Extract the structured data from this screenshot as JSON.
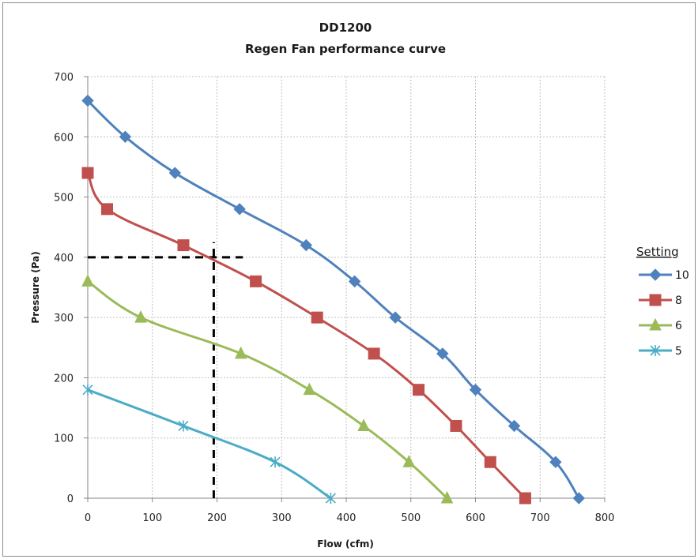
{
  "chart_data": {
    "type": "line",
    "title": [
      "DD1200",
      "Regen Fan performance curve"
    ],
    "xlabel": "Flow (cfm)",
    "ylabel": "Pressure (Pa)",
    "xlim": [
      0,
      800
    ],
    "ylim": [
      0,
      700
    ],
    "xticks": [
      0,
      100,
      200,
      300,
      400,
      500,
      600,
      700,
      800
    ],
    "yticks": [
      0,
      100,
      200,
      300,
      400,
      500,
      600,
      700
    ],
    "grid": true,
    "legend": {
      "title": "Setting",
      "placement": "right"
    },
    "series": [
      {
        "name": "10",
        "color": "#4f81bd",
        "marker": "diamond",
        "points": [
          [
            0,
            660
          ],
          [
            58,
            600
          ],
          [
            135,
            540
          ],
          [
            235,
            480
          ],
          [
            338,
            420
          ],
          [
            413,
            360
          ],
          [
            476,
            300
          ],
          [
            549,
            240
          ],
          [
            600,
            180
          ],
          [
            660,
            120
          ],
          [
            724,
            60
          ],
          [
            760,
            0
          ]
        ]
      },
      {
        "name": "8",
        "color": "#c0504d",
        "marker": "square",
        "points": [
          [
            0,
            540
          ],
          [
            30,
            480
          ],
          [
            148,
            420
          ],
          [
            260,
            360
          ],
          [
            355,
            300
          ],
          [
            443,
            240
          ],
          [
            512,
            180
          ],
          [
            570,
            120
          ],
          [
            623,
            60
          ],
          [
            677,
            0
          ]
        ]
      },
      {
        "name": "6",
        "color": "#9bbb59",
        "marker": "triangle",
        "points": [
          [
            0,
            360
          ],
          [
            82,
            300
          ],
          [
            237,
            240
          ],
          [
            343,
            180
          ],
          [
            427,
            120
          ],
          [
            497,
            60
          ],
          [
            556,
            0
          ]
        ]
      },
      {
        "name": "5",
        "color": "#4bacc6",
        "marker": "star",
        "points": [
          [
            0,
            180
          ],
          [
            148,
            120
          ],
          [
            290,
            60
          ],
          [
            376,
            0
          ]
        ]
      }
    ],
    "reference_lines": [
      {
        "style": "dashed",
        "color": "#000000",
        "points": [
          [
            0,
            400
          ],
          [
            240,
            400
          ]
        ]
      },
      {
        "style": "dashed",
        "color": "#000000",
        "points": [
          [
            195,
            0
          ],
          [
            195,
            425
          ]
        ]
      }
    ]
  }
}
